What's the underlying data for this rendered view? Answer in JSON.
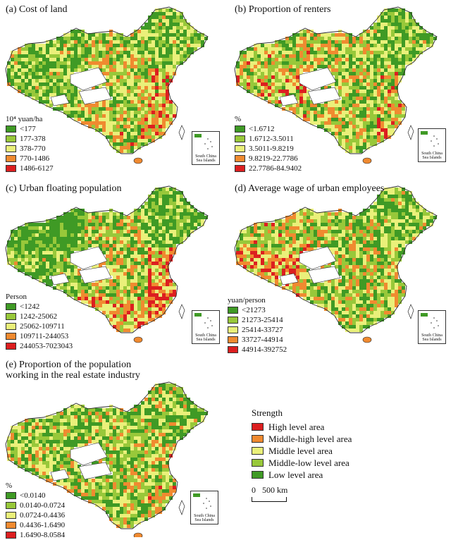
{
  "colors": {
    "level_1": "#3f9a25",
    "level_2": "#98c83a",
    "level_3": "#eaf07a",
    "level_4": "#f08a30",
    "level_5": "#dc1f20",
    "boundary": "#2a2a2a",
    "void": "#ffffff"
  },
  "panels": [
    {
      "title": "(a) Cost of land",
      "legend_unit": "10⁴ yuan/ha",
      "classes": [
        "<177",
        "177-378",
        "378-770",
        "770-1486",
        "1486-6127"
      ]
    },
    {
      "title": "(b) Proportion of renters",
      "legend_unit": "%",
      "classes": [
        "<1.6712",
        "1.6712-3.5011",
        "3.5011-9.8219",
        "9.8219-22.7786",
        "22.7786-84.9402"
      ]
    },
    {
      "title": "(c) Urban floating population",
      "legend_unit": "Person",
      "classes": [
        "<1242",
        "1242-25062",
        "25062-109711",
        "109711-244053",
        "244053-7023043"
      ]
    },
    {
      "title": "(d) Average wage of urban employees",
      "legend_unit": "yuan/person",
      "classes": [
        "<21273",
        "21273-25414",
        "25414-33727",
        "33727-44914",
        "44914-392752"
      ]
    },
    {
      "title": "(e) Proportion of the population\nworking in the real estate industry",
      "legend_unit": "%",
      "classes": [
        "<0.0140",
        "0.0140-0.0724",
        "0.0724-0.4436",
        "0.4436-1.6490",
        "1.6490-8.0584"
      ]
    }
  ],
  "inset_label": "South China Sea Islands",
  "strength_legend": {
    "title": "Strength",
    "items": [
      {
        "label": "High level area",
        "color": "#dc1f20"
      },
      {
        "label": "Middle-high level area",
        "color": "#f08a30"
      },
      {
        "label": "Middle level area",
        "color": "#eaf07a"
      },
      {
        "label": "Middle-low level area",
        "color": "#98c83a"
      },
      {
        "label": "Low level area",
        "color": "#3f9a25"
      }
    ]
  },
  "scale_bar": {
    "label": "0   500 km"
  }
}
